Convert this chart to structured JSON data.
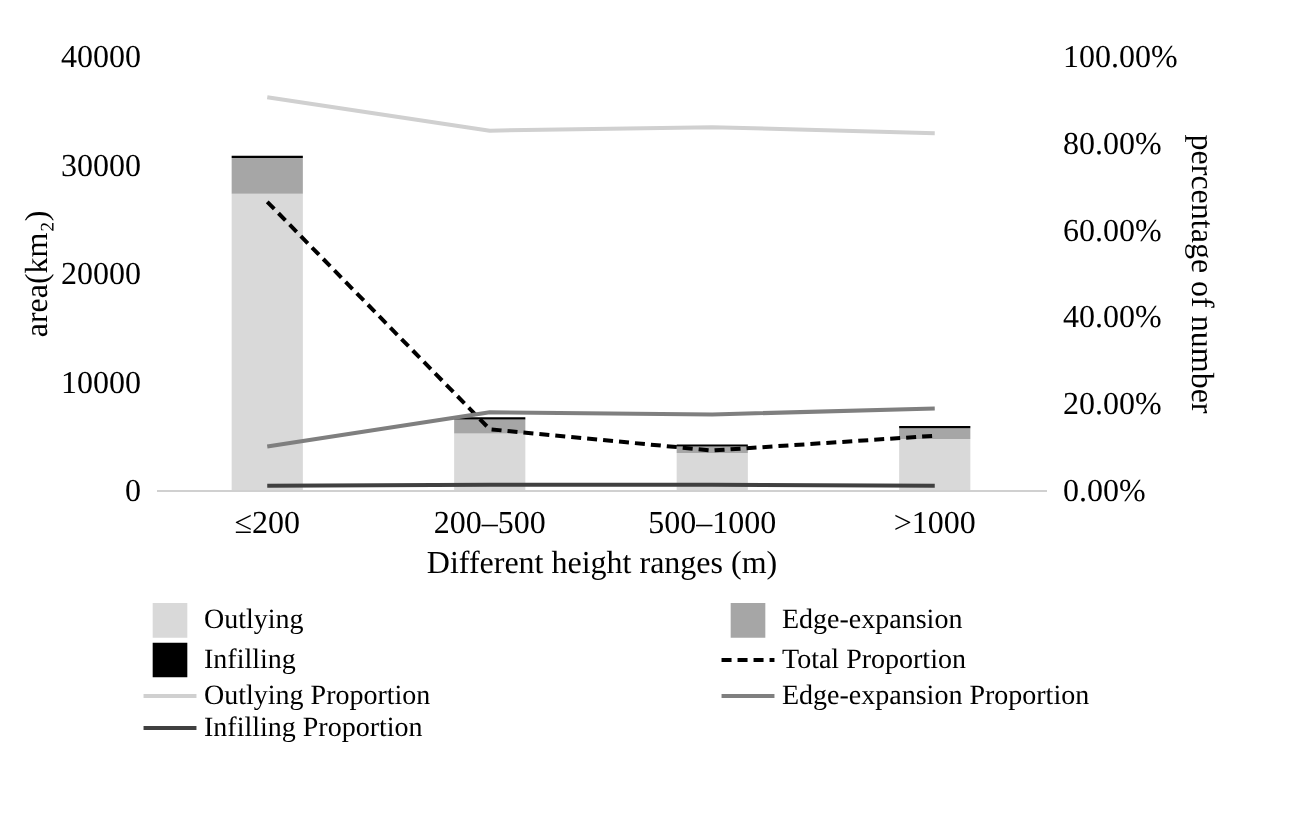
{
  "chart_data": {
    "type": "bar",
    "stacked": true,
    "xlabel": "Different height ranges (m)",
    "ylabel": "area(km₂)",
    "y2label": "percentage of  number",
    "categories": [
      "≤200",
      "200–500",
      "500–1000",
      ">1000"
    ],
    "series": [
      {
        "name": "Outlying",
        "color": "#d9d9d9",
        "values": [
          27300,
          5200,
          3400,
          4700
        ]
      },
      {
        "name": "Edge-expansion",
        "color": "#a6a6a6",
        "values": [
          3300,
          1300,
          600,
          1000
        ]
      },
      {
        "name": "Infilling",
        "color": "#000000",
        "values": [
          200,
          200,
          200,
          200
        ]
      },
      {
        "name": "Total Proportion",
        "type": "line",
        "axis": "y2",
        "color": "#000000",
        "line_style": "dashed",
        "values": [
          66.4,
          14.0,
          9.1,
          12.5
        ]
      },
      {
        "name": "Outlying Proportion",
        "type": "line",
        "axis": "y2",
        "color": "#d0d0d0",
        "line_style": "solid",
        "values": [
          90.5,
          82.8,
          83.6,
          82.2
        ]
      },
      {
        "name": "Edge-expansion Proportion",
        "type": "line",
        "axis": "y2",
        "color": "#7f7f7f",
        "line_style": "solid",
        "values": [
          10.0,
          17.9,
          17.4,
          18.8
        ]
      },
      {
        "name": "Infilling Proportion",
        "type": "line",
        "axis": "y2",
        "color": "#404040",
        "line_style": "solid",
        "values": [
          1.0,
          1.2,
          1.2,
          1.0
        ]
      }
    ],
    "ylim": [
      0,
      40000
    ],
    "yticks": [
      0,
      10000,
      20000,
      30000,
      40000
    ],
    "y2lim": [
      0,
      100
    ],
    "y2ticks": [
      {
        "value": 0,
        "label": "0.00%"
      },
      {
        "value": 20,
        "label": "20.00%"
      },
      {
        "value": 40,
        "label": "40.00%"
      },
      {
        "value": 60,
        "label": "60.00%"
      },
      {
        "value": 80,
        "label": "80.00%"
      },
      {
        "value": 100,
        "label": "100.00%"
      }
    ],
    "grid": false,
    "legend": "bottom"
  }
}
